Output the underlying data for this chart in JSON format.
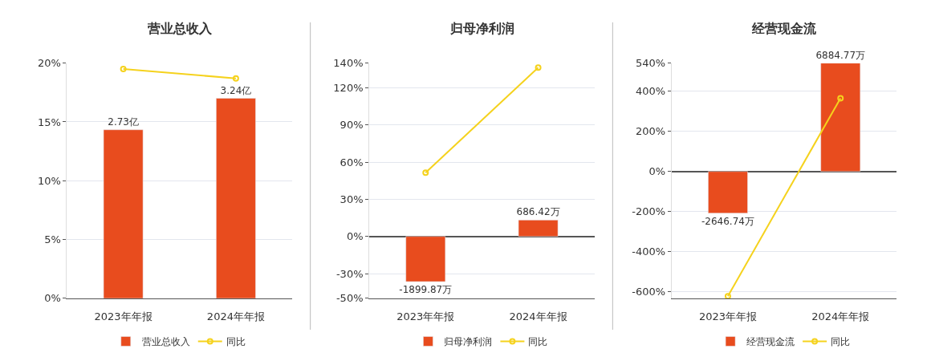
{
  "chart_data": [
    {
      "type": "bar",
      "title": "营业总收入",
      "categories": [
        "2023年年报",
        "2024年年报"
      ],
      "series": [
        {
          "name": "营业总收入",
          "axis": "y2",
          "color": "#e84c1e",
          "values": [
            2.73,
            3.24
          ],
          "value_labels": [
            "2.73亿",
            "3.24亿"
          ]
        },
        {
          "name": "同比",
          "type": "line",
          "color": "#f5d21d",
          "marker": "circle",
          "values": [
            19.5,
            18.7
          ]
        }
      ],
      "ylim": [
        0,
        20
      ],
      "yticks": [
        {
          "value": 0,
          "label": "0%"
        },
        {
          "value": 5,
          "label": "5%"
        },
        {
          "value": 10,
          "label": "10%"
        },
        {
          "value": 15,
          "label": "15%"
        },
        {
          "value": 20,
          "label": "20%"
        }
      ],
      "y2lim": [
        0,
        3.81
      ],
      "grid": "y",
      "legend": "bottom"
    },
    {
      "type": "bar",
      "title": "归母净利润",
      "categories": [
        "2023年年报",
        "2024年年报"
      ],
      "series": [
        {
          "name": "归母净利润",
          "axis": "y2",
          "color": "#e84c1e",
          "values": [
            -1899.87,
            686.42
          ],
          "value_labels": [
            "-1899.87万",
            "686.42万"
          ]
        },
        {
          "name": "同比",
          "type": "line",
          "color": "#f5d21d",
          "marker": "circle",
          "values": [
            51.5,
            136.4
          ]
        }
      ],
      "ylim": [
        -50,
        140
      ],
      "yticks": [
        {
          "value": -50,
          "label": "-50%"
        },
        {
          "value": -30,
          "label": "-30%"
        },
        {
          "value": 0,
          "label": "0%"
        },
        {
          "value": 30,
          "label": "30%"
        },
        {
          "value": 60,
          "label": "60%"
        },
        {
          "value": 90,
          "label": "90%"
        },
        {
          "value": 120,
          "label": "120%"
        },
        {
          "value": 140,
          "label": "140%"
        }
      ],
      "y2lim": [
        -2600,
        7280
      ],
      "grid": "y",
      "legend": "bottom"
    },
    {
      "type": "bar",
      "title": "经营现金流",
      "categories": [
        "2023年年报",
        "2024年年报"
      ],
      "series": [
        {
          "name": "经营现金流",
          "axis": "y2",
          "color": "#e84c1e",
          "values": [
            -2646.74,
            6884.77
          ],
          "value_labels": [
            "-2646.74万",
            "6884.77万"
          ]
        },
        {
          "name": "同比",
          "type": "line",
          "color": "#f5d21d",
          "marker": "circle",
          "values": [
            -621,
            365
          ]
        }
      ],
      "ylim": [
        -632,
        540
      ],
      "yticks": [
        {
          "value": -600,
          "label": "-600%"
        },
        {
          "value": -400,
          "label": "-400%"
        },
        {
          "value": -200,
          "label": "-200%"
        },
        {
          "value": 0,
          "label": "0%"
        },
        {
          "value": 200,
          "label": "200%"
        },
        {
          "value": 400,
          "label": "400%"
        },
        {
          "value": 540,
          "label": "540%"
        }
      ],
      "y2lim": [
        -8058,
        6885
      ],
      "grid": "y",
      "legend": "bottom"
    }
  ]
}
